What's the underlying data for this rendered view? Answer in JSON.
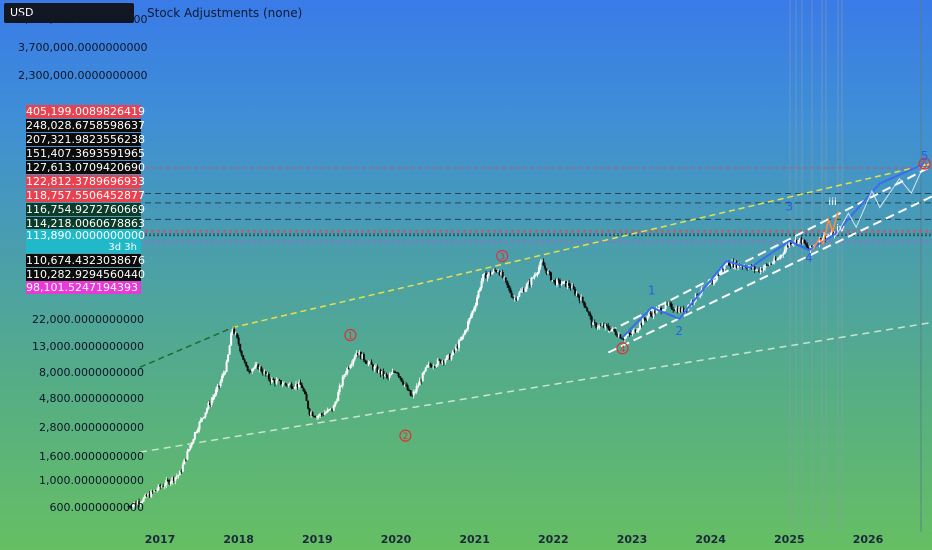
{
  "toolbar": {
    "currency": "USD",
    "title": "Stock Adjustments (none)"
  },
  "colors": {
    "bg_top": "#3a7be8",
    "bg_bottom": "#66bf63",
    "candle_up": "#ffffff",
    "candle_down": "#0b0b0b",
    "upper_trend": "#e8e04a",
    "lower_trend": "#d9ecd9",
    "channel": "#ffffff",
    "wave_line": "#3a6cf0"
  },
  "chart_data": {
    "type": "candlestick",
    "yscale": "log",
    "ylim": [
      480,
      5200000
    ],
    "y_ticks": [
      {
        "label": "5,800,000.0000000000",
        "value": 5800000
      },
      {
        "label": "3,700,000.0000000000",
        "value": 3700000
      },
      {
        "label": "2,300,000.0000000000",
        "value": 2300000
      },
      {
        "label": "22,000.0000000000",
        "value": 22000
      },
      {
        "label": "13,000.0000000000",
        "value": 13000
      },
      {
        "label": "8,000.0000000000",
        "value": 8000
      },
      {
        "label": "4,800.0000000000",
        "value": 4800
      },
      {
        "label": "2,800.0000000000",
        "value": 2800
      },
      {
        "label": "1,600.0000000000",
        "value": 1600
      },
      {
        "label": "1,000.0000000000",
        "value": 1000
      },
      {
        "label": "600.0000000000",
        "value": 600
      }
    ],
    "price_labels": [
      {
        "label": "405,199.0089826419",
        "value": 405199.0089826419,
        "color": "#e8414f"
      },
      {
        "label": "248,028.6758598637",
        "value": 248028.6758598637,
        "color": "#0b0b0b"
      },
      {
        "label": "207,321.9823556238",
        "value": 207321.9823556238,
        "color": "#0b0b0b"
      },
      {
        "label": "151,407.3693591965",
        "value": 151407.3693591965,
        "color": "#0b0b0b"
      },
      {
        "label": "127,613.0709420690",
        "value": 127613.070942069,
        "color": "#0b0b0b"
      },
      {
        "label": "122,812.3789696933",
        "value": 122812.3789696933,
        "color": "#e8414f"
      },
      {
        "label": "118,757.5506452877",
        "value": 118757.5506452877,
        "color": "#e8414f"
      },
      {
        "label": "116,754.9272760669",
        "value": 116754.9272760669,
        "color": "#0d3b2a"
      },
      {
        "label": "114,218.0060678863",
        "value": 114218.0060678863,
        "color": "#0d3b2a"
      },
      {
        "label": "113,890.0000000000",
        "value": 113890,
        "color": "#1fb9c9"
      },
      {
        "label": "110,674.4323038676",
        "value": 110674.4323038676,
        "color": "#0b0b0b"
      },
      {
        "label": "110,282.9294560440",
        "value": 110282.929456044,
        "color": "#0b0b0b"
      },
      {
        "label": "98,101.5247194393",
        "value": 98101.5247194393,
        "color": "#e83ad9"
      }
    ],
    "countdown": "3d 3h",
    "x_ticks": [
      "2017",
      "2018",
      "2019",
      "2020",
      "2021",
      "2022",
      "2023",
      "2024",
      "2025",
      "2026"
    ],
    "price_path": [
      [
        2016.6,
        620
      ],
      [
        2016.8,
        720
      ],
      [
        2017.0,
        900
      ],
      [
        2017.25,
        1150
      ],
      [
        2017.45,
        2600
      ],
      [
        2017.6,
        4100
      ],
      [
        2017.75,
        6200
      ],
      [
        2017.85,
        9500
      ],
      [
        2017.92,
        19000
      ],
      [
        2018.0,
        14000
      ],
      [
        2018.1,
        8500
      ],
      [
        2018.25,
        9000
      ],
      [
        2018.4,
        7000
      ],
      [
        2018.6,
        6400
      ],
      [
        2018.8,
        6300
      ],
      [
        2018.9,
        3800
      ],
      [
        2019.0,
        3500
      ],
      [
        2019.2,
        4000
      ],
      [
        2019.35,
        8000
      ],
      [
        2019.5,
        12000
      ],
      [
        2019.7,
        9000
      ],
      [
        2019.9,
        7200
      ],
      [
        2020.0,
        8500
      ],
      [
        2020.2,
        5000
      ],
      [
        2020.4,
        9000
      ],
      [
        2020.7,
        11000
      ],
      [
        2020.85,
        16000
      ],
      [
        2021.0,
        29000
      ],
      [
        2021.1,
        50000
      ],
      [
        2021.3,
        58000
      ],
      [
        2021.5,
        33000
      ],
      [
        2021.7,
        45000
      ],
      [
        2021.85,
        66000
      ],
      [
        2022.0,
        46000
      ],
      [
        2022.2,
        43000
      ],
      [
        2022.4,
        30000
      ],
      [
        2022.5,
        20000
      ],
      [
        2022.7,
        19000
      ],
      [
        2022.88,
        15800
      ],
      [
        2023.0,
        17000
      ],
      [
        2023.2,
        24000
      ],
      [
        2023.45,
        29000
      ],
      [
        2023.65,
        26000
      ],
      [
        2023.85,
        37000
      ],
      [
        2024.0,
        43000
      ],
      [
        2024.2,
        66000
      ],
      [
        2024.45,
        62000
      ],
      [
        2024.6,
        57000
      ],
      [
        2024.85,
        70000
      ],
      [
        2025.0,
        97000
      ],
      [
        2025.15,
        102000
      ],
      [
        2025.25,
        84000
      ],
      [
        2025.42,
        108000
      ],
      [
        2025.58,
        113890
      ]
    ],
    "wave_labels": [
      {
        "text": "1",
        "x": 2019.42,
        "y": 16500,
        "style": "red-circle"
      },
      {
        "text": "2",
        "x": 2020.12,
        "y": 2400,
        "style": "red-circle"
      },
      {
        "text": "3",
        "x": 2021.35,
        "y": 75000,
        "style": "red-circle"
      },
      {
        "text": "4",
        "x": 2022.88,
        "y": 12800,
        "style": "red-circle"
      },
      {
        "text": "5",
        "x": 2026.72,
        "y": 440000,
        "style": "red-circle"
      },
      {
        "text": "1",
        "x": 2023.25,
        "y": 36000,
        "style": "blue"
      },
      {
        "text": "2",
        "x": 2023.6,
        "y": 16500,
        "style": "blue"
      },
      {
        "text": "3",
        "x": 2025.0,
        "y": 180000,
        "style": "blue"
      },
      {
        "text": "4",
        "x": 2025.25,
        "y": 67000,
        "style": "blue"
      },
      {
        "text": "5",
        "x": 2026.72,
        "y": 470000,
        "style": "blue"
      },
      {
        "text": "iii",
        "x": 2025.55,
        "y": 200000,
        "style": "white"
      },
      {
        "text": "iv",
        "x": 2025.65,
        "y": 120000,
        "style": "white"
      }
    ]
  }
}
